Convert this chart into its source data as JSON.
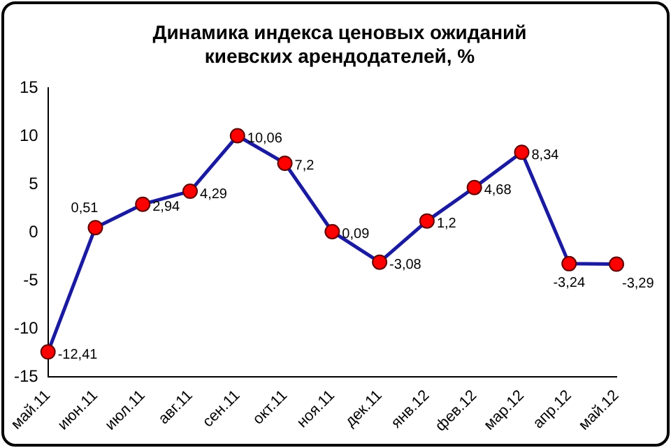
{
  "chart_data": {
    "type": "line",
    "title": "Динамика индекса ценовых ожиданий киевских арендодателей, %",
    "categories": [
      "май.11",
      "июн.11",
      "июл.11",
      "авг.11",
      "сен.11",
      "окт.11",
      "ноя.11",
      "дек.11",
      "янв.12",
      "фев.12",
      "мар.12",
      "апр.12",
      "май.12"
    ],
    "series": [
      {
        "color": "#1a1aa0",
        "values": [
          -12.41,
          0.51,
          2.94,
          4.29,
          10.06,
          7.2,
          0.09,
          -3.08,
          1.2,
          4.68,
          8.34,
          -3.24,
          -3.29
        ],
        "value_labels": [
          "-12,41",
          "0,51",
          "2,94",
          "4,29",
          "10,06",
          "7,2",
          "0,09",
          "-3,08",
          "1,2",
          "4,68",
          "8,34",
          "-3,24",
          "-3,29"
        ]
      }
    ],
    "ylim": [
      -15,
      15
    ],
    "yticks": [
      -15,
      -10,
      -5,
      0,
      5,
      10,
      15
    ],
    "grid": false,
    "legend": false,
    "marker": "circle",
    "line_style": "solid"
  }
}
